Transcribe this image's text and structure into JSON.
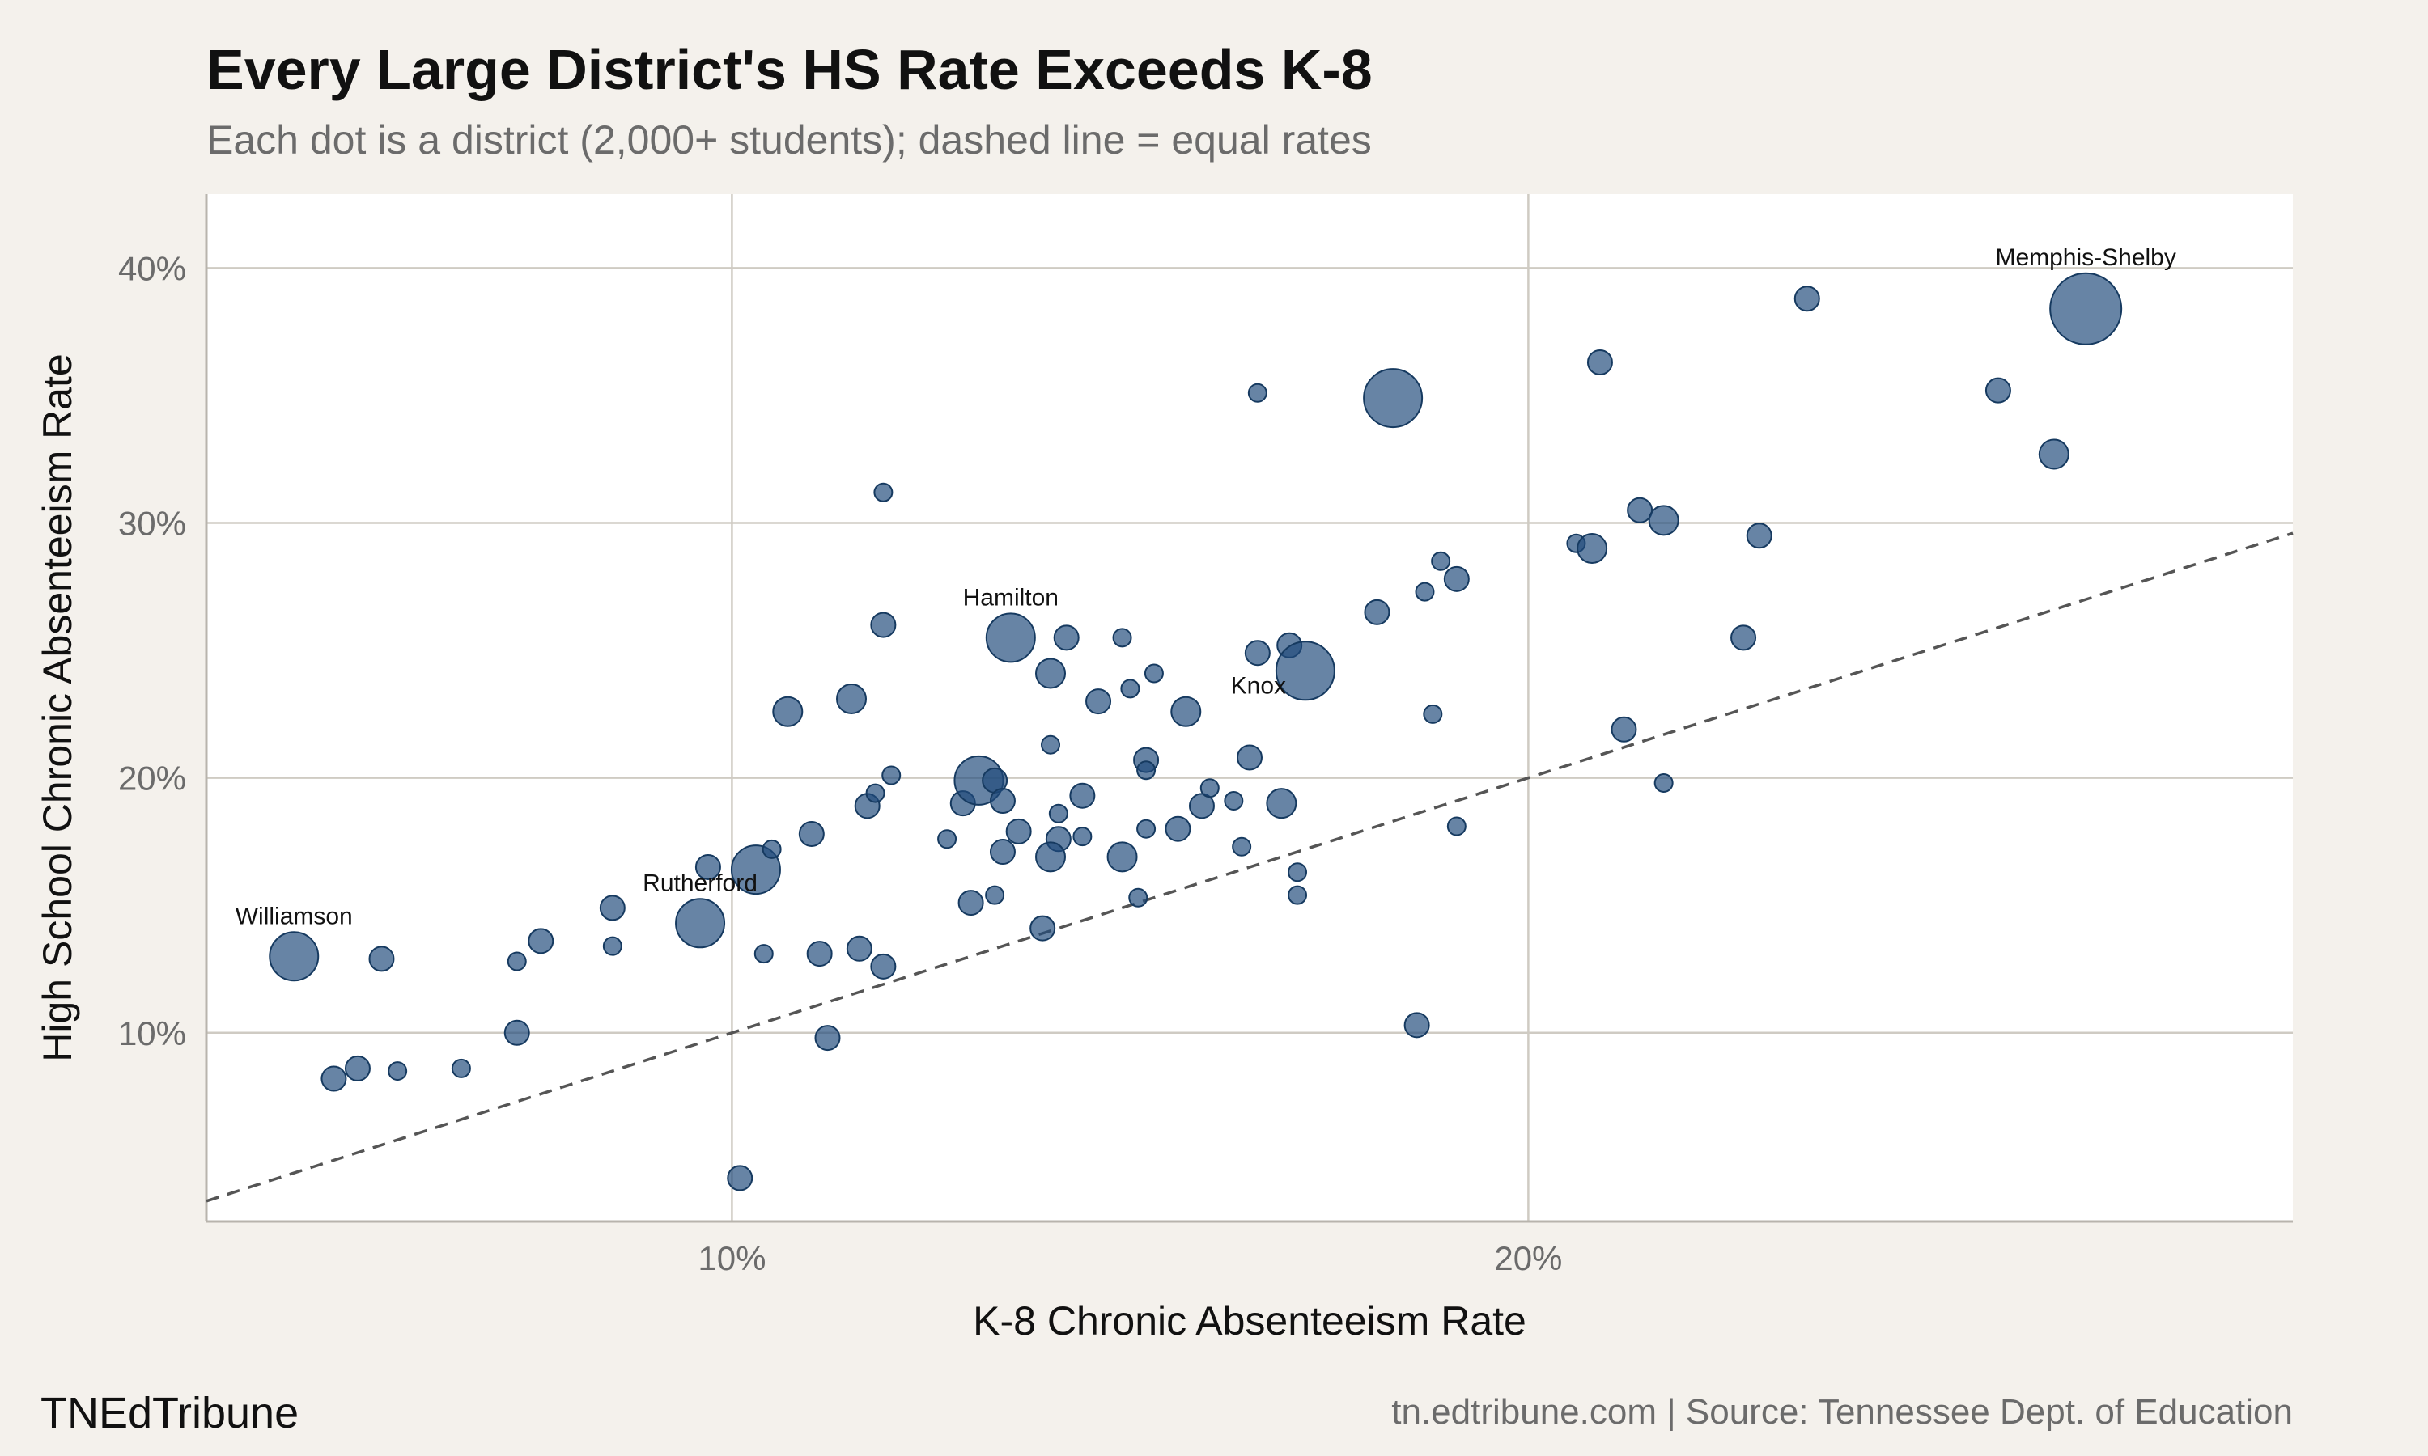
{
  "chart_data": {
    "type": "scatter",
    "title": "Every Large District's HS Rate Exceeds K-8",
    "subtitle": "Each dot is a district (2,000+ students); dashed line = equal rates",
    "xlabel": "K-8 Chronic Absenteeism Rate",
    "ylabel": "High School Chronic Absenteeism Rate",
    "xlim": [
      3.4,
      29.6
    ],
    "ylim": [
      2.6,
      42.9
    ],
    "x_ticks": [
      10,
      20
    ],
    "x_tick_labels": [
      "10%",
      "20%"
    ],
    "y_ticks": [
      10,
      20,
      30,
      40
    ],
    "y_tick_labels": [
      "10%",
      "20%",
      "30%",
      "40%"
    ],
    "grid": true,
    "reference_line": {
      "slope": 1,
      "intercept": 0,
      "style": "dashed"
    },
    "point_color": "#1f4a7a",
    "points": [
      {
        "x": 4.5,
        "y": 13.0,
        "s": 3,
        "label": "Williamson"
      },
      {
        "x": 5.6,
        "y": 12.9,
        "s": 1
      },
      {
        "x": 5.3,
        "y": 8.6,
        "s": 1
      },
      {
        "x": 5.0,
        "y": 8.2,
        "s": 1
      },
      {
        "x": 5.8,
        "y": 8.5,
        "s": 0
      },
      {
        "x": 6.6,
        "y": 8.6,
        "s": 0
      },
      {
        "x": 7.3,
        "y": 10.0,
        "s": 1
      },
      {
        "x": 7.3,
        "y": 12.8,
        "s": 0
      },
      {
        "x": 7.6,
        "y": 13.6,
        "s": 1
      },
      {
        "x": 8.5,
        "y": 14.9,
        "s": 1
      },
      {
        "x": 8.5,
        "y": 13.4,
        "s": 0
      },
      {
        "x": 9.6,
        "y": 14.3,
        "s": 3,
        "label": "Rutherford"
      },
      {
        "x": 9.7,
        "y": 16.5,
        "s": 1
      },
      {
        "x": 10.3,
        "y": 16.4,
        "s": 3
      },
      {
        "x": 10.5,
        "y": 17.2,
        "s": 0
      },
      {
        "x": 10.7,
        "y": 22.6,
        "s": 2
      },
      {
        "x": 11.0,
        "y": 17.8,
        "s": 1
      },
      {
        "x": 10.4,
        "y": 13.1,
        "s": 0
      },
      {
        "x": 11.1,
        "y": 13.1,
        "s": 1
      },
      {
        "x": 11.5,
        "y": 23.1,
        "s": 2
      },
      {
        "x": 11.2,
        "y": 9.8,
        "s": 1
      },
      {
        "x": 10.1,
        "y": 4.3,
        "s": 1
      },
      {
        "x": 11.7,
        "y": 18.9,
        "s": 1
      },
      {
        "x": 11.8,
        "y": 19.4,
        "s": 0
      },
      {
        "x": 11.9,
        "y": 26.0,
        "s": 1
      },
      {
        "x": 11.9,
        "y": 31.2,
        "s": 0
      },
      {
        "x": 12.0,
        "y": 20.1,
        "s": 0
      },
      {
        "x": 11.6,
        "y": 13.3,
        "s": 1
      },
      {
        "x": 11.9,
        "y": 12.6,
        "s": 1
      },
      {
        "x": 12.7,
        "y": 17.6,
        "s": 0
      },
      {
        "x": 12.9,
        "y": 19.0,
        "s": 1
      },
      {
        "x": 13.1,
        "y": 19.9,
        "s": 3
      },
      {
        "x": 13.3,
        "y": 19.9,
        "s": 1
      },
      {
        "x": 13.4,
        "y": 19.1,
        "s": 1
      },
      {
        "x": 13.0,
        "y": 15.1,
        "s": 1
      },
      {
        "x": 13.3,
        "y": 15.4,
        "s": 0
      },
      {
        "x": 13.4,
        "y": 17.1,
        "s": 1
      },
      {
        "x": 13.6,
        "y": 17.9,
        "s": 1
      },
      {
        "x": 13.5,
        "y": 25.5,
        "s": 3,
        "label": "Hamilton"
      },
      {
        "x": 14.0,
        "y": 24.1,
        "s": 2
      },
      {
        "x": 14.2,
        "y": 25.5,
        "s": 1
      },
      {
        "x": 14.0,
        "y": 21.3,
        "s": 0
      },
      {
        "x": 14.1,
        "y": 18.6,
        "s": 0
      },
      {
        "x": 14.1,
        "y": 17.6,
        "s": 1
      },
      {
        "x": 14.0,
        "y": 16.9,
        "s": 2
      },
      {
        "x": 13.9,
        "y": 14.1,
        "s": 1
      },
      {
        "x": 14.4,
        "y": 19.3,
        "s": 1
      },
      {
        "x": 14.4,
        "y": 17.7,
        "s": 0
      },
      {
        "x": 14.6,
        "y": 23.0,
        "s": 1
      },
      {
        "x": 14.9,
        "y": 16.9,
        "s": 2
      },
      {
        "x": 14.9,
        "y": 25.5,
        "s": 0
      },
      {
        "x": 15.0,
        "y": 23.5,
        "s": 0
      },
      {
        "x": 15.3,
        "y": 24.1,
        "s": 0
      },
      {
        "x": 15.2,
        "y": 20.7,
        "s": 1
      },
      {
        "x": 15.2,
        "y": 20.3,
        "s": 0
      },
      {
        "x": 15.2,
        "y": 18.0,
        "s": 0
      },
      {
        "x": 15.1,
        "y": 15.3,
        "s": 0
      },
      {
        "x": 15.6,
        "y": 18.0,
        "s": 1
      },
      {
        "x": 15.7,
        "y": 22.6,
        "s": 2
      },
      {
        "x": 15.9,
        "y": 18.9,
        "s": 1
      },
      {
        "x": 16.0,
        "y": 19.6,
        "s": 0
      },
      {
        "x": 16.3,
        "y": 19.1,
        "s": 0
      },
      {
        "x": 16.4,
        "y": 17.3,
        "s": 0
      },
      {
        "x": 16.5,
        "y": 20.8,
        "s": 1
      },
      {
        "x": 16.6,
        "y": 24.9,
        "s": 1
      },
      {
        "x": 16.6,
        "y": 35.1,
        "s": 0
      },
      {
        "x": 17.0,
        "y": 25.2,
        "s": 1
      },
      {
        "x": 16.9,
        "y": 19.0,
        "s": 2
      },
      {
        "x": 17.1,
        "y": 16.3,
        "s": 0
      },
      {
        "x": 17.1,
        "y": 15.4,
        "s": 0
      },
      {
        "x": 17.2,
        "y": 24.2,
        "s": 4,
        "label": "Knox"
      },
      {
        "x": 18.1,
        "y": 26.5,
        "s": 1
      },
      {
        "x": 18.3,
        "y": 34.9,
        "s": 4
      },
      {
        "x": 18.6,
        "y": 10.3,
        "s": 1
      },
      {
        "x": 18.7,
        "y": 27.3,
        "s": 0
      },
      {
        "x": 18.8,
        "y": 22.5,
        "s": 0
      },
      {
        "x": 18.9,
        "y": 28.5,
        "s": 0
      },
      {
        "x": 19.1,
        "y": 27.8,
        "s": 1
      },
      {
        "x": 19.1,
        "y": 18.1,
        "s": 0
      },
      {
        "x": 20.6,
        "y": 29.2,
        "s": 0
      },
      {
        "x": 20.8,
        "y": 29.0,
        "s": 2
      },
      {
        "x": 20.9,
        "y": 36.3,
        "s": 1
      },
      {
        "x": 21.2,
        "y": 21.9,
        "s": 1
      },
      {
        "x": 21.4,
        "y": 30.5,
        "s": 1
      },
      {
        "x": 21.7,
        "y": 30.1,
        "s": 2
      },
      {
        "x": 21.7,
        "y": 19.8,
        "s": 0
      },
      {
        "x": 22.7,
        "y": 25.5,
        "s": 1
      },
      {
        "x": 22.9,
        "y": 29.5,
        "s": 1
      },
      {
        "x": 23.5,
        "y": 38.8,
        "s": 1
      },
      {
        "x": 25.9,
        "y": 35.2,
        "s": 1
      },
      {
        "x": 26.6,
        "y": 32.7,
        "s": 2
      },
      {
        "x": 27.0,
        "y": 38.4,
        "s": 5,
        "label": "Memphis-Shelby"
      }
    ]
  },
  "footer": {
    "brand": "TNEdTribune",
    "source": "tn.edtribune.com | Source: Tennessee Dept. of Education"
  }
}
